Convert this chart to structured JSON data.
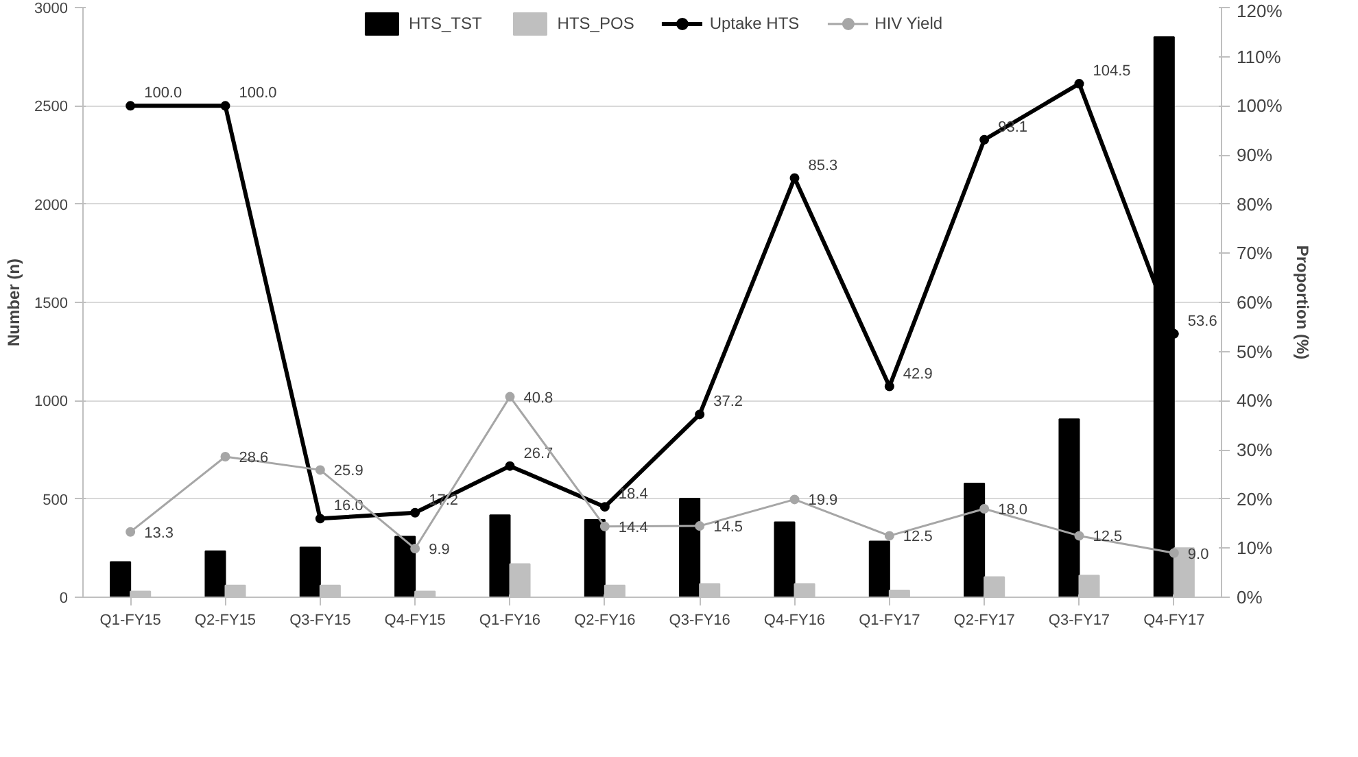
{
  "chart_data": {
    "type": "bar",
    "categories": [
      "Q1-FY15",
      "Q2-FY15",
      "Q3-FY15",
      "Q4-FY15",
      "Q1-FY16",
      "Q2-FY16",
      "Q3-FY16",
      "Q4-FY16",
      "Q1-FY17",
      "Q2-FY17",
      "Q3-FY17",
      "Q4-FY17"
    ],
    "ylabel": "Number (n)",
    "y2label": "Proportion (%)",
    "ylim": [
      0,
      3000
    ],
    "yticks": [
      0,
      500,
      1000,
      1500,
      2000,
      2500,
      3000
    ],
    "y2lim": [
      0,
      120
    ],
    "y2ticks": [
      {
        "value": 0,
        "label": "0%"
      },
      {
        "value": 10,
        "label": "10%"
      },
      {
        "value": 20,
        "label": "20%"
      },
      {
        "value": 30,
        "label": "30%"
      },
      {
        "value": 40,
        "label": "40%"
      },
      {
        "value": 50,
        "label": "50%"
      },
      {
        "value": 60,
        "label": "60%"
      },
      {
        "value": 70,
        "label": "70%"
      },
      {
        "value": 80,
        "label": "80%"
      },
      {
        "value": 90,
        "label": "90%"
      },
      {
        "value": 100,
        "label": "100%"
      },
      {
        "value": 110,
        "label": "110%"
      },
      {
        "value": 120,
        "label": "120%"
      }
    ],
    "grid": "y",
    "legend": "top",
    "marker": "circle",
    "series": [
      {
        "name": "HTS_TST",
        "color": "#000000",
        "values": [
          180,
          235,
          254,
          309,
          418,
          394,
          502,
          382,
          284,
          579,
          906,
          2850
        ]
      },
      {
        "name": "HTS_POS",
        "color": "#bfbfbf",
        "values": [
          30,
          60,
          60,
          30,
          169,
          60,
          68,
          68,
          35,
          103,
          111,
          250
        ]
      },
      {
        "name": "Uptake HTS",
        "type": "line",
        "axis": "y2",
        "color": "#000000",
        "values": [
          100.0,
          100.0,
          16.0,
          17.2,
          26.7,
          18.4,
          37.2,
          85.3,
          42.9,
          93.1,
          104.5,
          53.6
        ],
        "value_labels": [
          "100.0",
          "100.0",
          "16.0",
          "17.2",
          "26.7",
          "18.4",
          "37.2",
          "85.3",
          "42.9",
          "93.1",
          "104.5",
          "53.6"
        ]
      },
      {
        "name": "HIV Yield",
        "type": "line",
        "axis": "y2",
        "color": "#a6a6a6",
        "values": [
          13.3,
          28.6,
          25.9,
          9.9,
          40.8,
          14.4,
          14.5,
          19.9,
          12.5,
          18.0,
          12.5,
          9.0
        ],
        "value_labels": [
          "13.3",
          "28.6",
          "25.9",
          "9.9",
          "40.8",
          "14.4",
          "14.5",
          "19.9",
          "12.5",
          "18.0",
          "12.5",
          "9.0"
        ]
      }
    ]
  }
}
